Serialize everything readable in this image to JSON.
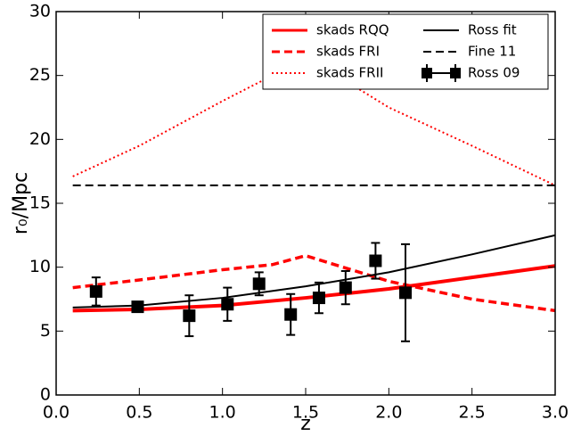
{
  "chart_data": {
    "type": "line",
    "xlabel": "z",
    "ylabel": "r₀/Mpc",
    "xlim": [
      0,
      3
    ],
    "ylim": [
      0,
      30
    ],
    "xticks": [
      {
        "value": 0,
        "label": "0.0"
      },
      {
        "value": 0.5,
        "label": "0.5"
      },
      {
        "value": 1,
        "label": "1.0"
      },
      {
        "value": 1.5,
        "label": "1.5"
      },
      {
        "value": 2,
        "label": "2.0"
      },
      {
        "value": 2.5,
        "label": "2.5"
      },
      {
        "value": 3,
        "label": "3.0"
      }
    ],
    "yticks": [
      0,
      5,
      10,
      15,
      20,
      25,
      30
    ],
    "legend": "upper right",
    "legend_columns": 2,
    "series": [
      {
        "name": "skads RQQ",
        "color": "#ff0000",
        "style": "solid",
        "width": 4,
        "x": [
          0.1,
          0.5,
          1.0,
          1.5,
          2.0,
          2.5,
          3.0
        ],
        "values": [
          6.6,
          6.7,
          7.0,
          7.6,
          8.3,
          9.2,
          10.1
        ]
      },
      {
        "name": "skads FRI",
        "color": "#ff0000",
        "style": "dashed",
        "width": 3.5,
        "x": [
          0.1,
          0.5,
          1.0,
          1.3,
          1.5,
          2.0,
          2.5,
          3.0
        ],
        "values": [
          8.4,
          9.0,
          9.8,
          10.2,
          10.9,
          8.9,
          7.5,
          6.6
        ]
      },
      {
        "name": "skads FRII",
        "color": "#ff0000",
        "style": "dotted",
        "width": 2,
        "x": [
          0.1,
          0.5,
          1.0,
          1.3,
          1.5,
          2.0,
          2.5,
          3.0
        ],
        "values": [
          17.1,
          19.5,
          23.0,
          25.0,
          26.5,
          22.5,
          19.5,
          16.4
        ]
      },
      {
        "name": "Ross fit",
        "color": "#000000",
        "style": "solid",
        "width": 2,
        "x": [
          0.1,
          0.5,
          1.0,
          1.5,
          2.0,
          2.5,
          3.0
        ],
        "values": [
          6.85,
          7.0,
          7.6,
          8.5,
          9.6,
          11.0,
          12.5
        ]
      },
      {
        "name": "Fine 11",
        "color": "#000000",
        "style": "dashed",
        "width": 2,
        "x": [
          0.1,
          3.0
        ],
        "values": [
          16.4,
          16.4
        ]
      },
      {
        "name": "Ross 09",
        "color": "#000000",
        "style": "errorbar",
        "marker": "square",
        "x": [
          0.24,
          0.49,
          0.8,
          1.03,
          1.22,
          1.41,
          1.58,
          1.74,
          1.92,
          2.1
        ],
        "values": [
          8.1,
          6.9,
          6.2,
          7.1,
          8.7,
          6.3,
          7.6,
          8.4,
          10.5,
          8.0
        ],
        "errors": [
          1.1,
          0.2,
          1.6,
          1.3,
          0.9,
          1.6,
          1.2,
          1.3,
          1.4,
          3.8
        ]
      }
    ]
  }
}
